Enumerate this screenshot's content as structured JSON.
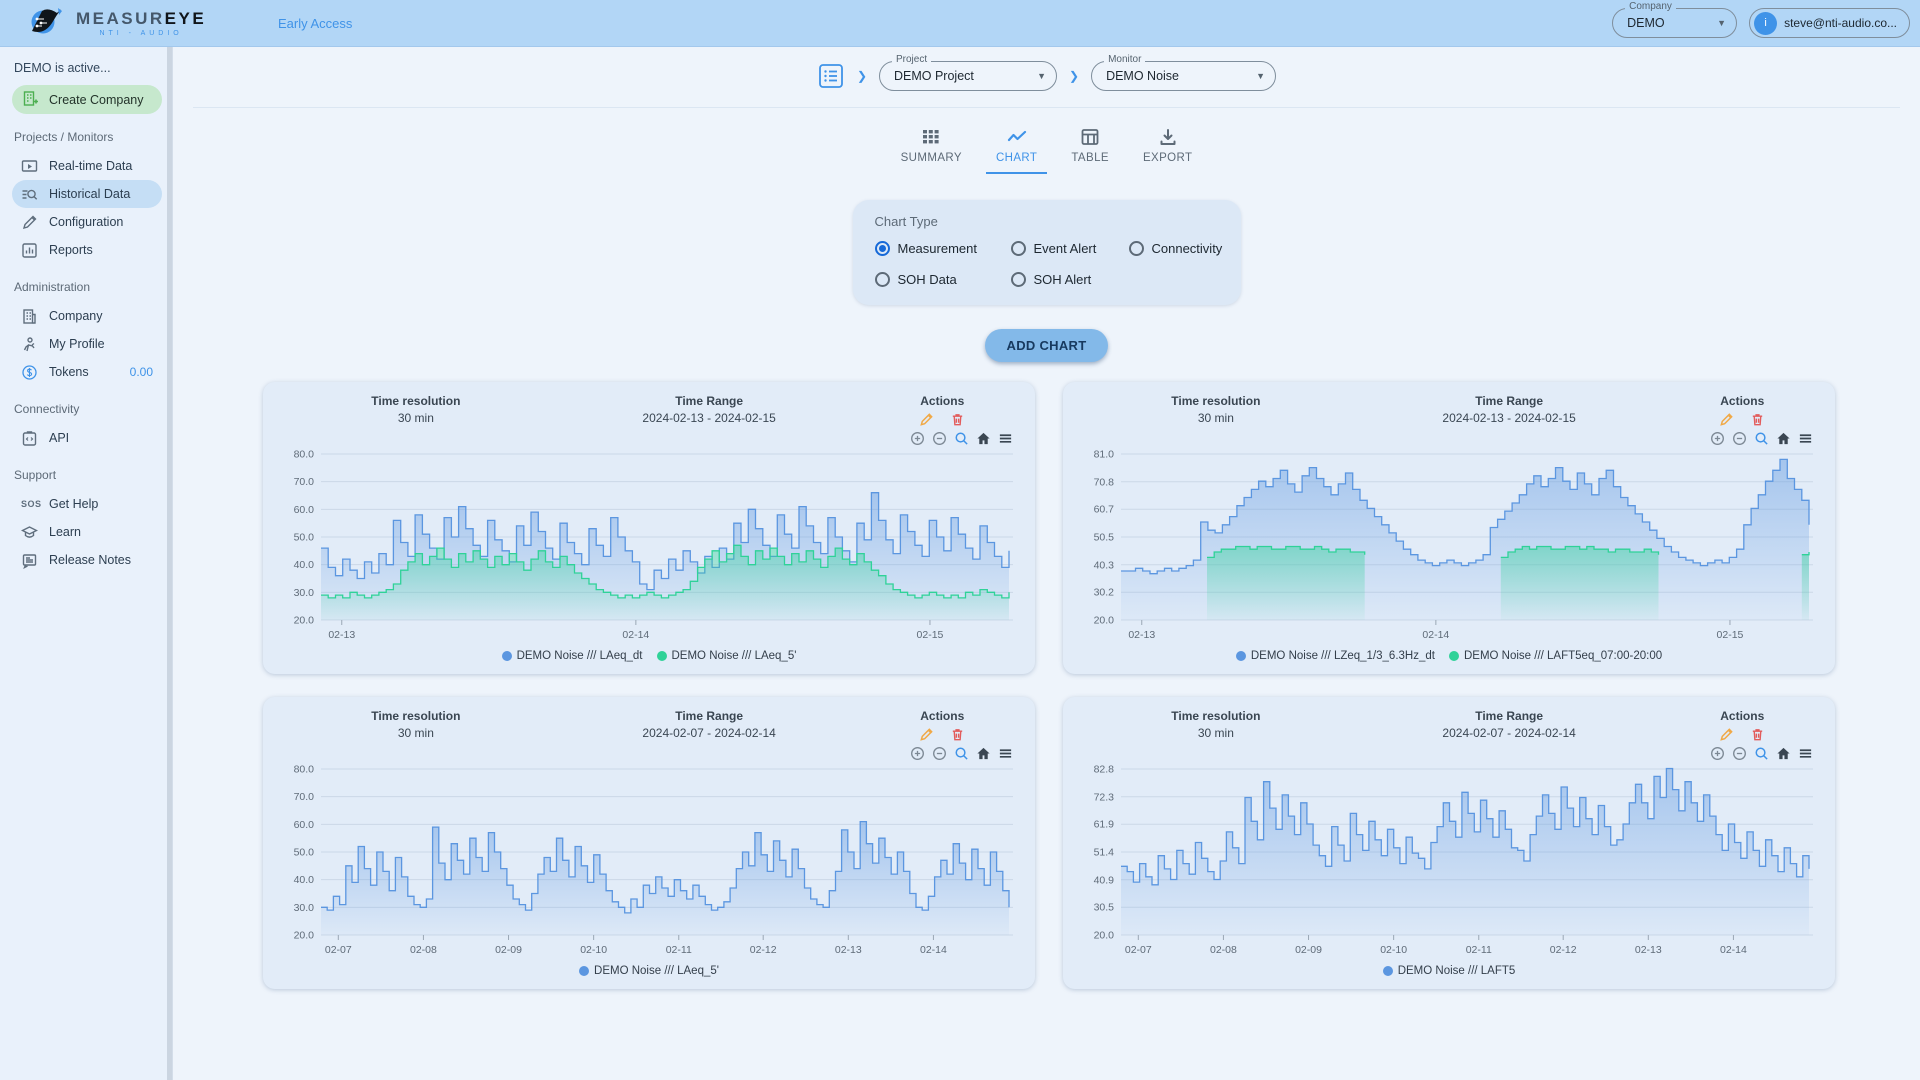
{
  "theme": {
    "accent": "#3f93e8",
    "series_blue": "#5b96e0",
    "series_green": "#2fd298",
    "pencil": "#f0a948",
    "trash": "#e25c5c",
    "topbar_bg": "#b2d6f6",
    "card_bg": "#e2ecf8"
  },
  "topbar": {
    "logo_primary": "MEASUR",
    "logo_accent": "EYE",
    "logo_subtitle": "NTI - AUDIO",
    "badge": "Early Access",
    "company_select": {
      "label": "Company",
      "value": "DEMO"
    },
    "user_email": "steve@nti-audio.co...",
    "avatar_initial": "i"
  },
  "sidebar": {
    "status": "DEMO is active...",
    "create_company": "Create Company",
    "section_projects": "Projects / Monitors",
    "item_realtime": "Real-time Data",
    "item_historical": "Historical Data",
    "item_configuration": "Configuration",
    "item_reports": "Reports",
    "section_admin": "Administration",
    "item_company": "Company",
    "item_profile": "My Profile",
    "item_tokens": "Tokens",
    "tokens_value": "0.00",
    "section_connectivity": "Connectivity",
    "item_api": "API",
    "section_support": "Support",
    "item_gethelp": "Get Help",
    "item_learn": "Learn",
    "item_release": "Release Notes"
  },
  "breadcrumb": {
    "project_label": "Project",
    "project_value": "DEMO Project",
    "monitor_label": "Monitor",
    "monitor_value": "DEMO Noise"
  },
  "tabs": [
    {
      "label": "SUMMARY"
    },
    {
      "label": "CHART"
    },
    {
      "label": "TABLE"
    },
    {
      "label": "EXPORT"
    }
  ],
  "chart_type_panel": {
    "title": "Chart Type",
    "options": [
      "Measurement",
      "Event Alert",
      "Connectivity",
      "SOH Data",
      "SOH Alert"
    ],
    "selected": "Measurement"
  },
  "add_chart_label": "ADD CHART",
  "card_labels": {
    "time_resolution": "Time resolution",
    "time_range": "Time Range",
    "actions": "Actions"
  },
  "chart_data": [
    {
      "type": "line",
      "step": true,
      "time_resolution": "30 min",
      "time_range": "2024-02-13 - 2024-02-15",
      "ylabel": "dB",
      "y_ticks": [
        "80.0",
        "70.0",
        "60.0",
        "50.0",
        "40.0",
        "30.0",
        "20.0"
      ],
      "y_range": [
        20,
        80
      ],
      "grid": true,
      "legend_position": "bottom",
      "x_ticks": [
        {
          "label": "02-13",
          "f": 0.03
        },
        {
          "label": "02-14",
          "f": 0.455
        },
        {
          "label": "02-15",
          "f": 0.88
        }
      ],
      "series": [
        {
          "name": "DEMO Noise /// LAeq_dt",
          "color": "#5b96e0",
          "values": [
            46,
            39,
            36,
            42,
            38,
            35,
            41,
            37,
            44,
            40,
            56,
            48,
            43,
            58,
            51,
            46,
            42,
            57,
            50,
            61,
            53,
            47,
            43,
            56,
            49,
            45,
            41,
            54,
            47,
            59,
            52,
            46,
            42,
            55,
            48,
            44,
            40,
            53,
            47,
            43,
            57,
            50,
            45,
            41,
            33,
            31,
            38,
            35,
            42,
            38,
            45,
            41,
            37,
            43,
            39,
            46,
            42,
            55,
            48,
            60,
            53,
            47,
            43,
            58,
            51,
            46,
            61,
            54,
            48,
            44,
            57,
            50,
            45,
            41,
            55,
            49,
            66,
            56,
            49,
            44,
            58,
            52,
            47,
            43,
            56,
            50,
            45,
            57,
            51,
            46,
            42,
            54,
            48,
            43,
            39,
            45
          ]
        },
        {
          "name": "DEMO Noise /// LAeq_5'",
          "color": "#2fd298",
          "values": [
            29,
            28,
            29,
            28,
            30,
            29,
            28,
            29,
            30,
            31,
            33,
            38,
            41,
            44,
            40,
            43,
            46,
            42,
            39,
            44,
            41,
            45,
            42,
            39,
            43,
            40,
            44,
            41,
            38,
            42,
            45,
            41,
            39,
            43,
            40,
            37,
            35,
            33,
            31,
            30,
            29,
            28,
            29,
            28,
            29,
            30,
            29,
            28,
            29,
            30,
            31,
            34,
            39,
            42,
            45,
            41,
            44,
            47,
            43,
            40,
            45,
            42,
            46,
            43,
            40,
            44,
            41,
            45,
            42,
            39,
            43,
            46,
            42,
            40,
            44,
            41,
            38,
            36,
            33,
            31,
            30,
            29,
            28,
            29,
            30,
            29,
            28,
            29,
            28,
            30,
            29,
            31,
            30,
            29,
            28,
            30
          ]
        }
      ]
    },
    {
      "type": "line",
      "step": true,
      "time_resolution": "30 min",
      "time_range": "2024-02-13 - 2024-02-15",
      "ylabel": "dB",
      "y_ticks": [
        "81.0",
        "70.8",
        "60.7",
        "50.5",
        "40.3",
        "30.2",
        "20.0"
      ],
      "y_range": [
        20,
        81
      ],
      "grid": true,
      "legend_position": "bottom",
      "x_ticks": [
        {
          "label": "02-13",
          "f": 0.03
        },
        {
          "label": "02-14",
          "f": 0.455
        },
        {
          "label": "02-15",
          "f": 0.88
        }
      ],
      "series": [
        {
          "name": "DEMO Noise /// LZeq_1/3_6.3Hz_dt",
          "color": "#5b96e0",
          "values": [
            38,
            38,
            39,
            38,
            37,
            38,
            39,
            38,
            39,
            40,
            42,
            56,
            53,
            52,
            55,
            58,
            62,
            65,
            68,
            71,
            69,
            72,
            75,
            70,
            67,
            73,
            76,
            72,
            69,
            66,
            70,
            74,
            68,
            64,
            61,
            58,
            55,
            52,
            49,
            46,
            44,
            42,
            41,
            40,
            41,
            42,
            41,
            40,
            41,
            42,
            44,
            54,
            57,
            60,
            63,
            66,
            70,
            73,
            69,
            72,
            76,
            71,
            68,
            74,
            70,
            66,
            72,
            75,
            69,
            65,
            62,
            59,
            56,
            53,
            50,
            47,
            45,
            43,
            42,
            41,
            40,
            41,
            42,
            41,
            43,
            46,
            55,
            61,
            66,
            71,
            75,
            79,
            72,
            68,
            64,
            55
          ]
        },
        {
          "name": "DEMO Noise /// LAFT5eq_07:00-20:00",
          "color": "#2fd298",
          "values": [
            null,
            null,
            null,
            null,
            null,
            null,
            null,
            null,
            null,
            null,
            null,
            null,
            43,
            45,
            46,
            46,
            47,
            47,
            46,
            47,
            47,
            46,
            46,
            47,
            47,
            46,
            46,
            47,
            46,
            45,
            46,
            46,
            45,
            45,
            44,
            null,
            null,
            null,
            null,
            null,
            null,
            null,
            null,
            null,
            null,
            null,
            null,
            null,
            null,
            null,
            null,
            null,
            null,
            43,
            45,
            46,
            47,
            46,
            47,
            47,
            46,
            46,
            47,
            47,
            46,
            47,
            46,
            46,
            45,
            46,
            46,
            45,
            45,
            46,
            45,
            44,
            null,
            null,
            null,
            null,
            null,
            null,
            null,
            null,
            null,
            null,
            null,
            null,
            null,
            null,
            null,
            null,
            null,
            null,
            null,
            44,
            45
          ]
        }
      ]
    },
    {
      "type": "line",
      "step": true,
      "time_resolution": "30 min",
      "time_range": "2024-02-07 - 2024-02-14",
      "ylabel": "dB",
      "y_ticks": [
        "80.0",
        "70.0",
        "60.0",
        "50.0",
        "40.0",
        "30.0",
        "20.0"
      ],
      "y_range": [
        20,
        80
      ],
      "grid": true,
      "legend_position": "bottom",
      "x_ticks": [
        {
          "label": "02-07",
          "f": 0.025
        },
        {
          "label": "02-08",
          "f": 0.148
        },
        {
          "label": "02-09",
          "f": 0.271
        },
        {
          "label": "02-10",
          "f": 0.394
        },
        {
          "label": "02-11",
          "f": 0.517
        },
        {
          "label": "02-12",
          "f": 0.639
        },
        {
          "label": "02-13",
          "f": 0.762
        },
        {
          "label": "02-14",
          "f": 0.885
        }
      ],
      "series": [
        {
          "name": "DEMO Noise /// LAeq_5'",
          "color": "#5b96e0",
          "values": [
            30,
            29,
            34,
            31,
            45,
            39,
            52,
            44,
            38,
            50,
            43,
            36,
            48,
            41,
            34,
            31,
            30,
            33,
            59,
            46,
            40,
            53,
            47,
            42,
            55,
            48,
            43,
            57,
            50,
            44,
            38,
            33,
            31,
            29,
            35,
            42,
            48,
            43,
            55,
            47,
            41,
            52,
            45,
            39,
            49,
            42,
            36,
            32,
            30,
            28,
            33,
            30,
            38,
            35,
            41,
            37,
            34,
            40,
            36,
            33,
            38,
            34,
            31,
            29,
            30,
            32,
            37,
            44,
            50,
            45,
            57,
            49,
            43,
            54,
            47,
            41,
            51,
            44,
            37,
            33,
            31,
            30,
            36,
            43,
            58,
            50,
            44,
            61,
            53,
            46,
            55,
            48,
            42,
            50,
            43,
            35,
            30,
            29,
            34,
            41,
            47,
            42,
            53,
            46,
            40,
            51,
            44,
            38,
            50,
            43,
            36,
            30
          ]
        }
      ]
    },
    {
      "type": "line",
      "step": true,
      "time_resolution": "30 min",
      "time_range": "2024-02-07 - 2024-02-14",
      "ylabel": "dB",
      "y_ticks": [
        "82.8",
        "72.3",
        "61.9",
        "51.4",
        "40.9",
        "30.5",
        "20.0"
      ],
      "y_range": [
        20,
        82.8
      ],
      "grid": true,
      "legend_position": "bottom",
      "x_ticks": [
        {
          "label": "02-07",
          "f": 0.025
        },
        {
          "label": "02-08",
          "f": 0.148
        },
        {
          "label": "02-09",
          "f": 0.271
        },
        {
          "label": "02-10",
          "f": 0.394
        },
        {
          "label": "02-11",
          "f": 0.517
        },
        {
          "label": "02-12",
          "f": 0.639
        },
        {
          "label": "02-13",
          "f": 0.762
        },
        {
          "label": "02-14",
          "f": 0.885
        }
      ],
      "series": [
        {
          "name": "DEMO Noise /// LAFT5",
          "color": "#5b96e0",
          "values": [
            46,
            44,
            40,
            47,
            42,
            39,
            50,
            45,
            41,
            52,
            47,
            43,
            55,
            49,
            44,
            41,
            48,
            59,
            53,
            47,
            72,
            63,
            56,
            78,
            68,
            60,
            73,
            65,
            58,
            70,
            62,
            54,
            50,
            46,
            61,
            54,
            48,
            66,
            58,
            52,
            63,
            56,
            50,
            60,
            53,
            47,
            57,
            51,
            49,
            45,
            55,
            61,
            70,
            63,
            57,
            74,
            66,
            59,
            71,
            64,
            57,
            67,
            60,
            53,
            52,
            48,
            58,
            65,
            73,
            66,
            60,
            76,
            68,
            61,
            72,
            64,
            58,
            69,
            61,
            54,
            56,
            62,
            70,
            77,
            70,
            64,
            80,
            72,
            83,
            75,
            67,
            78,
            70,
            63,
            73,
            65,
            58,
            52,
            62,
            55,
            49,
            59,
            52,
            46,
            56,
            50,
            44,
            53,
            47,
            42,
            50,
            45
          ]
        }
      ]
    }
  ]
}
